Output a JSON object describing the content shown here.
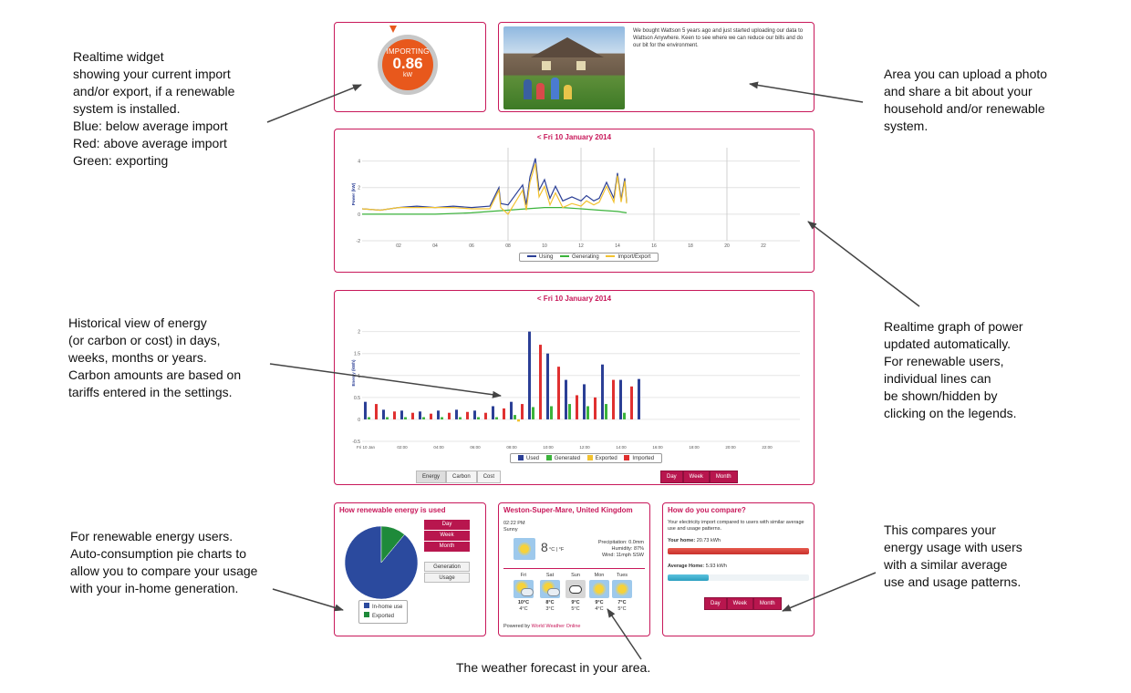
{
  "annotations": {
    "realtime_widget": "Realtime widget\nshowing your current import\nand/or export, if a renewable\nsystem is installed.\nBlue: below average import\nRed: above average import\nGreen: exporting",
    "photo_area": "Area you can upload a photo\nand share a bit about your\nhousehold and/or renewable\nsystem.",
    "historical": "Historical view of energy\n(or carbon or cost) in days,\nweeks, months or years.\nCarbon amounts are based on\ntariffs entered in the settings.",
    "realtime_graph": "Realtime graph of power\nupdated automatically.\nFor renewable users,\nindividual lines can\nbe shown/hidden by\nclicking on the legends.",
    "renewable_pie": "For renewable energy users.\nAuto-consumption pie charts to\nallow you to compare your usage\nwith your in-home generation.",
    "compare": "This compares your\nenergy usage with users\nwith a similar average\nuse and usage patterns.",
    "weather": "The weather forecast in your area."
  },
  "widget": {
    "status": "IMPORTING",
    "value": "0.86",
    "unit": "kW",
    "color": "#e8581c"
  },
  "photo_panel": {
    "text": "We bought Wattson 5 years ago and just started uploading our data to Wattson Anywhere. Keen to see where we can reduce our bills and do our bit for the environment."
  },
  "colors": {
    "accent": "#c8185a",
    "used": "#2b3f96",
    "generated": "#3bb33b",
    "exported": "#f2c230",
    "imported": "#e03030"
  },
  "chart_data": [
    {
      "type": "line",
      "title": "<  Fri 10 January 2014",
      "ylabel": "Power (kW)",
      "x_ticks": [
        "02",
        "04",
        "06",
        "08",
        "10",
        "12",
        "14",
        "16",
        "18",
        "20",
        "22"
      ],
      "y_ticks": [
        "4",
        "2",
        "0",
        "-2"
      ],
      "xlim": [
        0,
        24
      ],
      "ylim": [
        -2,
        5
      ],
      "series": [
        {
          "name": "Using",
          "color": "#2b3f96",
          "x": [
            0,
            1,
            2,
            3,
            4,
            5,
            6,
            7,
            7.5,
            7.6,
            8,
            8.8,
            9,
            9.2,
            9.5,
            9.7,
            10,
            10.3,
            10.6,
            11,
            11.5,
            12,
            12.3,
            12.7,
            13,
            13.4,
            13.8,
            14,
            14.2,
            14.4,
            14.5
          ],
          "y": [
            0.4,
            0.3,
            0.5,
            0.6,
            0.5,
            0.6,
            0.5,
            0.6,
            2.0,
            0.8,
            0.7,
            2.2,
            0.7,
            2.8,
            4.2,
            1.8,
            2.6,
            1.2,
            2.1,
            1.0,
            1.3,
            1.0,
            1.4,
            1.0,
            1.2,
            2.4,
            1.2,
            3.1,
            1.1,
            2.7,
            0.9
          ]
        },
        {
          "name": "Generating",
          "color": "#3bb33b",
          "x": [
            0,
            2,
            4,
            6,
            7,
            8,
            9,
            10,
            11,
            12,
            13,
            14,
            14.5
          ],
          "y": [
            0.0,
            0.0,
            0.0,
            0.1,
            0.2,
            0.3,
            0.4,
            0.5,
            0.5,
            0.4,
            0.3,
            0.2,
            0.1
          ]
        },
        {
          "name": "Import/Export",
          "color": "#f2c230",
          "x": [
            0,
            1,
            2,
            3,
            4,
            5,
            6,
            7,
            7.5,
            7.6,
            8,
            8.8,
            9,
            9.2,
            9.5,
            9.7,
            10,
            10.3,
            10.6,
            11,
            11.5,
            12,
            12.3,
            12.7,
            13,
            13.4,
            13.8,
            14,
            14.2,
            14.4,
            14.5
          ],
          "y": [
            0.4,
            0.3,
            0.5,
            0.5,
            0.5,
            0.5,
            0.4,
            0.4,
            1.8,
            0.5,
            0.0,
            1.8,
            0.3,
            2.4,
            3.8,
            1.3,
            2.1,
            0.7,
            1.6,
            0.5,
            0.8,
            0.6,
            1.0,
            0.7,
            0.9,
            2.1,
            0.9,
            2.9,
            0.9,
            2.5,
            0.8
          ]
        }
      ]
    },
    {
      "type": "bar",
      "title": "<  Fri 10 January 2014",
      "ylabel": "Energy (kWh)",
      "x_ticks": [
        "Fri 10 Jan",
        "02:00",
        "04:00",
        "06:00",
        "08:00",
        "10:00",
        "12:00",
        "14:00",
        "16:00",
        "18:00",
        "20:00",
        "22:00"
      ],
      "y_ticks": [
        "2",
        "1.5",
        "1",
        "0.5",
        "0",
        "-0.5"
      ],
      "ylim": [
        -0.5,
        2.2
      ],
      "categories": [
        "00",
        "01",
        "02",
        "03",
        "04",
        "05",
        "06",
        "07",
        "08",
        "09",
        "10",
        "11",
        "12",
        "13",
        "14",
        "15"
      ],
      "series": [
        {
          "name": "Used",
          "color": "#2b3f96",
          "values": [
            0.4,
            0.22,
            0.2,
            0.18,
            0.2,
            0.22,
            0.2,
            0.3,
            0.4,
            2.0,
            1.5,
            0.9,
            0.8,
            1.25,
            0.9,
            0.92
          ]
        },
        {
          "name": "Generated",
          "color": "#3bb33b",
          "values": [
            0.05,
            0.05,
            0.05,
            0.05,
            0.05,
            0.05,
            0.05,
            0.05,
            0.1,
            0.28,
            0.3,
            0.35,
            0.3,
            0.35,
            0.15,
            0.0
          ]
        },
        {
          "name": "Exported",
          "color": "#f2c230",
          "values": [
            0,
            0,
            0,
            0,
            0,
            0,
            0,
            0,
            -0.05,
            0,
            0,
            0,
            0,
            0,
            0,
            0
          ]
        },
        {
          "name": "Imported",
          "color": "#e03030",
          "values": [
            0.35,
            0.18,
            0.15,
            0.13,
            0.15,
            0.17,
            0.15,
            0.25,
            0.35,
            1.7,
            1.2,
            0.55,
            0.5,
            0.9,
            0.75,
            0.0
          ]
        }
      ]
    },
    {
      "type": "pie",
      "title": "How renewable energy is used",
      "categories": [
        "In-home use",
        "Exported"
      ],
      "values": [
        89,
        11
      ],
      "colors": [
        "#2b4a9e",
        "#1e8a3a"
      ]
    }
  ],
  "chart_titles": {
    "realtime": "<  Fri 10 January 2014",
    "historical": "<  Fri 10 January 2014"
  },
  "realtime_legend": [
    "Using",
    "Generating",
    "Import/Export"
  ],
  "historical_legend": [
    "Used",
    "Generated",
    "Exported",
    "Imported"
  ],
  "measure_buttons": [
    "Energy",
    "Carbon",
    "Cost"
  ],
  "period_buttons": [
    "Day",
    "Week",
    "Month"
  ],
  "pie_panel": {
    "title": "How renewable energy is used",
    "period_buttons": [
      "Day",
      "Week",
      "Month"
    ],
    "view_buttons": [
      "Generation",
      "Usage"
    ],
    "legend": [
      "In-home use",
      "Exported"
    ]
  },
  "weather": {
    "location": "Weston-Super-Mare, United Kingdom",
    "time": "02:22 PM",
    "condition": "Sunny",
    "temp": "8",
    "temp_units": "°C | °F",
    "precipitation": "Precipitation: 0.0mm",
    "humidity": "Humidity: 87%",
    "wind": "Wind: 11mph SSW",
    "days": [
      {
        "name": "Fri",
        "icon": "sun-cloud-icon",
        "high": "10°C",
        "low": "4°C"
      },
      {
        "name": "Sat",
        "icon": "sun-cloud-icon",
        "high": "8°C",
        "low": "3°C"
      },
      {
        "name": "Sun",
        "icon": "cloud-icon",
        "high": "9°C",
        "low": "5°C"
      },
      {
        "name": "Mon",
        "icon": "sun-icon",
        "high": "9°C",
        "low": "4°C"
      },
      {
        "name": "Tues",
        "icon": "sun-icon",
        "high": "7°C",
        "low": "5°C"
      }
    ],
    "powered_prefix": "Powered by",
    "powered_link": "World Weather Online"
  },
  "compare": {
    "title": "How do you compare?",
    "intro": "Your electricity import compared to users with similar average use and usage patterns.",
    "your_home_label": "Your home:",
    "your_home_value": "20.73 kWh",
    "your_home_fraction": 1.0,
    "average_label": "Average Home:",
    "average_value": "5.93 kWh",
    "average_fraction": 0.29,
    "period_buttons": [
      "Day",
      "Week",
      "Month"
    ]
  }
}
